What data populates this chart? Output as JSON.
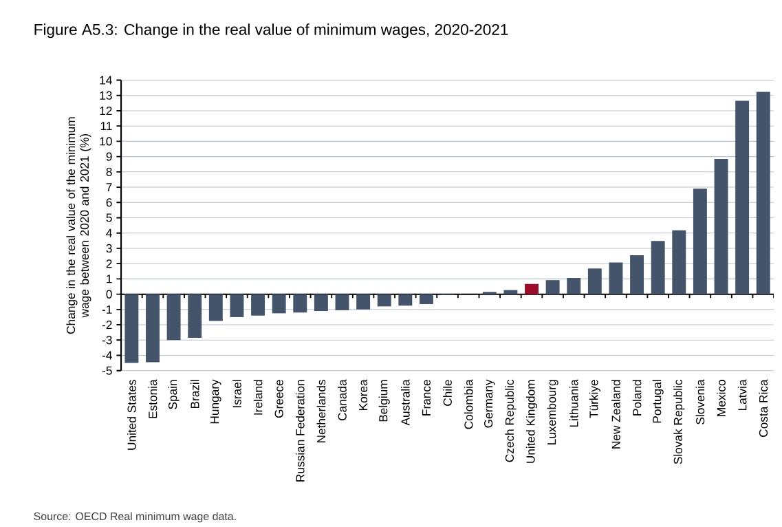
{
  "chart_data": {
    "type": "bar",
    "title": "Figure A5.3: Change in the real value of minimum wages, 2020-2021",
    "ylabel": "Change in the real value of the minimum wage between 2020 and 2021 (%)",
    "annotations": [
      "Source: OECD Real minimum wage data."
    ],
    "categories": [
      "United States",
      "Estonia",
      "Spain",
      "Brazil",
      "Hungary",
      "Israel",
      "Ireland",
      "Greece",
      "Russian Federation",
      "Netherlands",
      "Canada",
      "Korea",
      "Belgium",
      "Australia",
      "France",
      "Chile",
      "Colombia",
      "Germany",
      "Czech Republic",
      "United Kingdom",
      "Luxembourg",
      "Lithuania",
      "Türkiye",
      "New Zealand",
      "Poland",
      "Portugal",
      "Slovak Republic",
      "Slovenia",
      "Mexico",
      "Latvia",
      "Costa Rica"
    ],
    "values": [
      -4.5,
      -4.45,
      -3.0,
      -2.85,
      -1.75,
      -1.5,
      -1.4,
      -1.25,
      -1.2,
      -1.1,
      -1.05,
      -1.0,
      -0.8,
      -0.75,
      -0.65,
      -0.05,
      0,
      0.15,
      0.27,
      0.67,
      0.92,
      1.06,
      1.68,
      2.08,
      2.55,
      3.48,
      4.18,
      6.9,
      8.85,
      12.65,
      13.24
    ],
    "colors": [
      "#44546a",
      "#44546a",
      "#44546a",
      "#44546a",
      "#44546a",
      "#44546a",
      "#44546a",
      "#44546a",
      "#44546a",
      "#44546a",
      "#44546a",
      "#44546a",
      "#44546a",
      "#44546a",
      "#44546a",
      "#44546a",
      "#44546a",
      "#44546a",
      "#44546a",
      "#9b0d2a",
      "#44546a",
      "#44546a",
      "#44546a",
      "#44546a",
      "#44546a",
      "#44546a",
      "#44546a",
      "#44546a",
      "#44546a",
      "#44546a",
      "#44546a"
    ],
    "ylim": [
      -5,
      14
    ],
    "yticks": [
      -5,
      -4,
      -3,
      -2,
      -1,
      0,
      1,
      2,
      3,
      4,
      5,
      6,
      7,
      8,
      9,
      10,
      11,
      12,
      13,
      14
    ],
    "grid": "y"
  }
}
